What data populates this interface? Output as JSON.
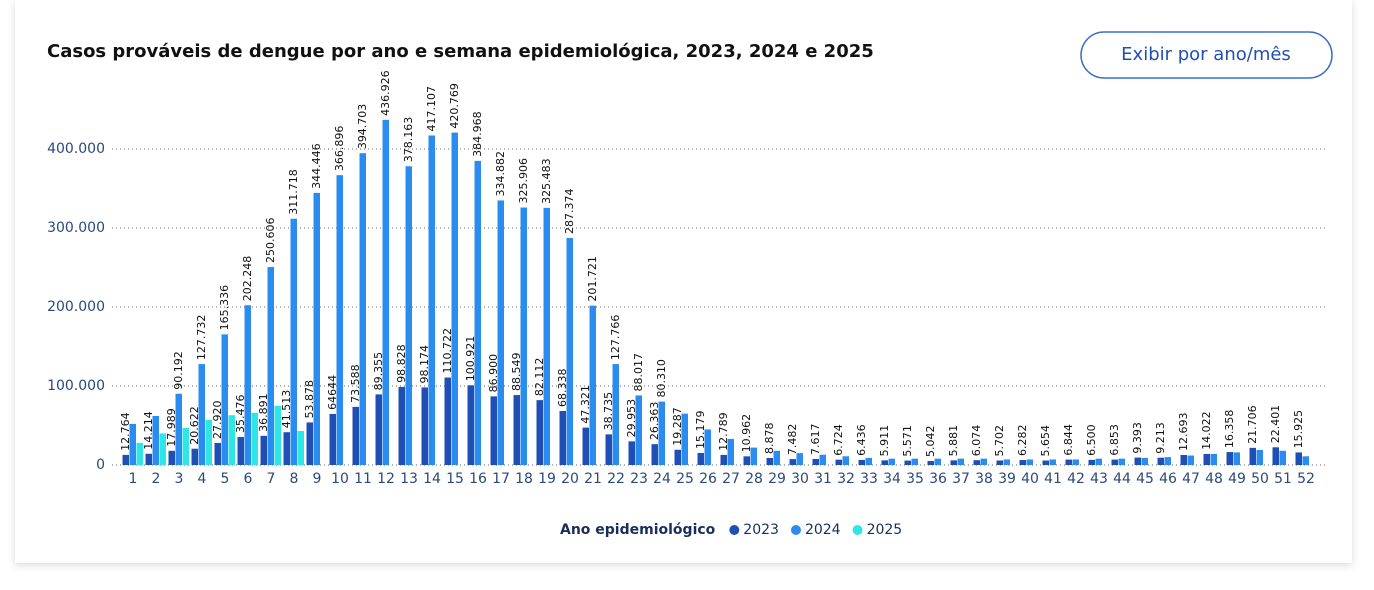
{
  "chart_data": {
    "type": "bar",
    "title": "Casos prováveis de dengue por ano e semana epidemiológica, 2023, 2024 e 2025",
    "button": "Exibir por ano/mês",
    "legend_title": "Ano epidemiológico",
    "categories": [
      "1",
      "2",
      "3",
      "4",
      "5",
      "6",
      "7",
      "8",
      "9",
      "10",
      "11",
      "12",
      "13",
      "14",
      "15",
      "16",
      "17",
      "18",
      "19",
      "20",
      "21",
      "22",
      "23",
      "24",
      "25",
      "26",
      "27",
      "28",
      "29",
      "30",
      "31",
      "32",
      "33",
      "34",
      "35",
      "36",
      "37",
      "38",
      "39",
      "40",
      "41",
      "42",
      "43",
      "44",
      "45",
      "46",
      "47",
      "48",
      "49",
      "50",
      "51",
      "52"
    ],
    "series": [
      {
        "name": "2023",
        "color": "#1f4fb5",
        "values": [
          12764,
          14214,
          17989,
          20622,
          27920,
          35476,
          36891,
          41513,
          53878,
          64644,
          73588,
          89355,
          98828,
          98174,
          110722,
          100921,
          86900,
          88549,
          82112,
          68338,
          47321,
          38735,
          29953,
          26363,
          19287,
          15179,
          12789,
          10962,
          8878,
          7482,
          7617,
          6724,
          6436,
          5911,
          5571,
          5042,
          5881,
          6074,
          5702,
          6282,
          5654,
          6844,
          6500,
          6853,
          9393,
          9213,
          12693,
          14022,
          16358,
          21706,
          22401,
          15925
        ],
        "value_labels": [
          "12.764",
          "14.214",
          "17.989",
          "20.622",
          "27.920",
          "35.476",
          "36.891",
          "41.513",
          "53.878",
          "64644",
          "73.588",
          "89.355",
          "98.828",
          "98.174",
          "110.722",
          "100.921",
          "86.900",
          "88.549",
          "82.112",
          "68.338",
          "47.321",
          "38.735",
          "29.953",
          "26.363",
          "19.287",
          "15.179",
          "12.789",
          "10.962",
          "8.878",
          "7.482",
          "7.617",
          "6.724",
          "6.436",
          "5.911",
          "5.571",
          "5.042",
          "5.881",
          "6.074",
          "5.702",
          "6.282",
          "5.654",
          "6.844",
          "6.500",
          "6.853",
          "9.393",
          "9.213",
          "12.693",
          "14.022",
          "16.358",
          "21.706",
          "22.401",
          "15.925"
        ]
      },
      {
        "name": "2024",
        "color": "#2b8cf0",
        "values": [
          52000,
          62000,
          90192,
          127732,
          165336,
          202248,
          250606,
          311718,
          344446,
          366896,
          394703,
          436926,
          378163,
          417107,
          420769,
          384968,
          334882,
          325906,
          325483,
          287374,
          201721,
          127766,
          88017,
          80310,
          65000,
          45000,
          33000,
          22000,
          18000,
          15000,
          13000,
          11000,
          9000,
          8000,
          8000,
          8000,
          8000,
          8000,
          7000,
          7000,
          7000,
          7000,
          8000,
          8000,
          9000,
          10000,
          12000,
          14000,
          16000,
          19000,
          18000,
          11000
        ],
        "value_labels": [
          null,
          null,
          "90.192",
          "127.732",
          "165.336",
          "202.248",
          "250.606",
          "311.718",
          "344.446",
          "366.896",
          "394.703",
          "436.926",
          "378.163",
          "417.107",
          "420.769",
          "384.968",
          "334.882",
          "325.906",
          "325.483",
          "287.374",
          "201.721",
          "127.766",
          "88.017",
          "80.310",
          null,
          null,
          null,
          null,
          null,
          null,
          null,
          null,
          null,
          null,
          null,
          null,
          null,
          null,
          null,
          null,
          null,
          null,
          null,
          null,
          null,
          null,
          null,
          null,
          null,
          null,
          null,
          null
        ]
      },
      {
        "name": "2025",
        "color": "#2ee6e6",
        "values": [
          28000,
          40000,
          47000,
          57000,
          63000,
          66000,
          75000,
          43000,
          null,
          null,
          null,
          null,
          null,
          null,
          null,
          null,
          null,
          null,
          null,
          null,
          null,
          null,
          null,
          null,
          null,
          null,
          null,
          null,
          null,
          null,
          null,
          null,
          null,
          null,
          null,
          null,
          null,
          null,
          null,
          null,
          null,
          null,
          null,
          null,
          null,
          null,
          null,
          null,
          null,
          null,
          null,
          null
        ]
      }
    ],
    "ylim": [
      0,
      450000
    ],
    "yticks": [
      0,
      {
        "value": 100000,
        "label": "100.000"
      },
      {
        "value": 200000,
        "label": "200.000"
      },
      {
        "value": 300000,
        "label": "300.000"
      },
      {
        "value": 400000,
        "label": "400.000"
      }
    ],
    "grid": true
  }
}
